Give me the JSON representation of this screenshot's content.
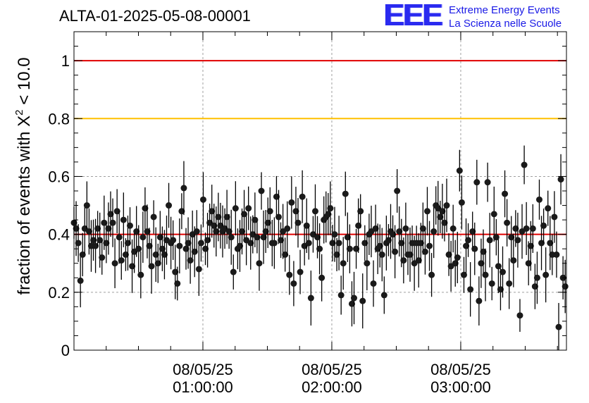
{
  "chart_data": {
    "type": "scatter",
    "title": "ALTA-01-2025-05-08-00001",
    "ylabel": "fraction of events with X",
    "ylabel_superscript": "2",
    "ylabel_suffix": " < 10.0",
    "ylim": [
      0,
      1.1
    ],
    "xlim_hours": [
      0,
      3.82
    ],
    "y_ticks": [
      {
        "value": 0,
        "label": "0"
      },
      {
        "value": 0.2,
        "label": "0.2"
      },
      {
        "value": 0.4,
        "label": "0.4"
      },
      {
        "value": 0.6,
        "label": "0.6"
      },
      {
        "value": 0.8,
        "label": "0.8"
      },
      {
        "value": 1.0,
        "label": "1"
      }
    ],
    "x_ticks": [
      {
        "value": 1,
        "date": "08/05/25",
        "time": "01:00:00"
      },
      {
        "value": 2,
        "date": "08/05/25",
        "time": "02:00:00"
      },
      {
        "value": 3,
        "date": "08/05/25",
        "time": "03:00:00"
      }
    ],
    "reference_lines": [
      {
        "value": 1.0,
        "color": "#e00000"
      },
      {
        "value": 0.8,
        "color": "#ffc000"
      },
      {
        "value": 0.4,
        "color": "#e00000"
      }
    ],
    "grid": true,
    "series": [
      {
        "name": "fraction",
        "values": [
          0.44,
          0.42,
          0.37,
          0.24,
          0.33,
          0.42,
          0.5,
          0.41,
          0.36,
          0.38,
          0.36,
          0.42,
          0.38,
          0.32,
          0.44,
          0.37,
          0.42,
          0.47,
          0.44,
          0.3,
          0.48,
          0.39,
          0.31,
          0.45,
          0.33,
          0.37,
          0.43,
          0.29,
          0.34,
          0.41,
          0.35,
          0.26,
          0.39,
          0.49,
          0.41,
          0.36,
          0.29,
          0.46,
          0.33,
          0.3,
          0.39,
          0.35,
          0.33,
          0.38,
          0.5,
          0.37,
          0.38,
          0.27,
          0.23,
          0.36,
          0.48,
          0.56,
          0.35,
          0.37,
          0.31,
          0.4,
          0.34,
          0.41,
          0.28,
          0.37,
          0.52,
          0.35,
          0.38,
          0.44,
          0.48,
          0.43,
          0.41,
          0.46,
          0.43,
          0.41,
          0.42,
          0.46,
          0.41,
          0.39,
          0.27,
          0.49,
          0.35,
          0.36,
          0.41,
          0.47,
          0.38,
          0.49,
          0.37,
          0.4,
          0.45,
          0.39,
          0.3,
          0.55,
          0.39,
          0.41,
          0.44,
          0.48,
          0.37,
          0.37,
          0.53,
          0.46,
          0.38,
          0.41,
          0.33,
          0.42,
          0.26,
          0.51,
          0.23,
          0.48,
          0.44,
          0.27,
          0.53,
          0.36,
          0.43,
          0.37,
          0.18,
          0.4,
          0.48,
          0.39,
          0.35,
          0.25,
          0.45,
          0.46,
          0.47,
          0.49,
          0.37,
          0.4,
          0.33,
          0.37,
          0.19,
          0.3,
          0.54,
          0.39,
          0.35,
          0.16,
          0.18,
          0.35,
          0.43,
          0.48,
          0.17,
          0.37,
          0.3,
          0.4,
          0.41,
          0.23,
          0.42,
          0.35,
          0.36,
          0.33,
          0.19,
          0.37,
          0.38,
          0.41,
          0.4,
          0.34,
          0.55,
          0.41,
          0.37,
          0.31,
          0.42,
          0.33,
          0.33,
          0.37,
          0.3,
          0.37,
          0.31,
          0.37,
          0.42,
          0.34,
          0.48,
          0.36,
          0.26,
          0.41,
          0.5,
          0.49,
          0.46,
          0.48,
          0.44,
          0.5,
          0.33,
          0.29,
          0.42,
          0.3,
          0.32,
          0.62,
          0.51,
          0.26,
          0.36,
          0.38,
          0.21,
          0.41,
          0.35,
          0.58,
          0.17,
          0.3,
          0.34,
          0.26,
          0.58,
          0.38,
          0.23,
          0.47,
          0.39,
          0.29,
          0.21,
          0.27,
          0.54,
          0.44,
          0.23,
          0.39,
          0.31,
          0.42,
          0.38,
          0.12,
          0.41,
          0.64,
          0.42,
          0.3,
          0.36,
          0.42,
          0.22,
          0.25,
          0.52,
          0.37,
          0.43,
          0.26,
          0.49,
          0.37,
          0.33,
          0.46,
          0.33,
          0.08,
          0.59,
          0.25,
          0.22
        ]
      }
    ]
  }
}
